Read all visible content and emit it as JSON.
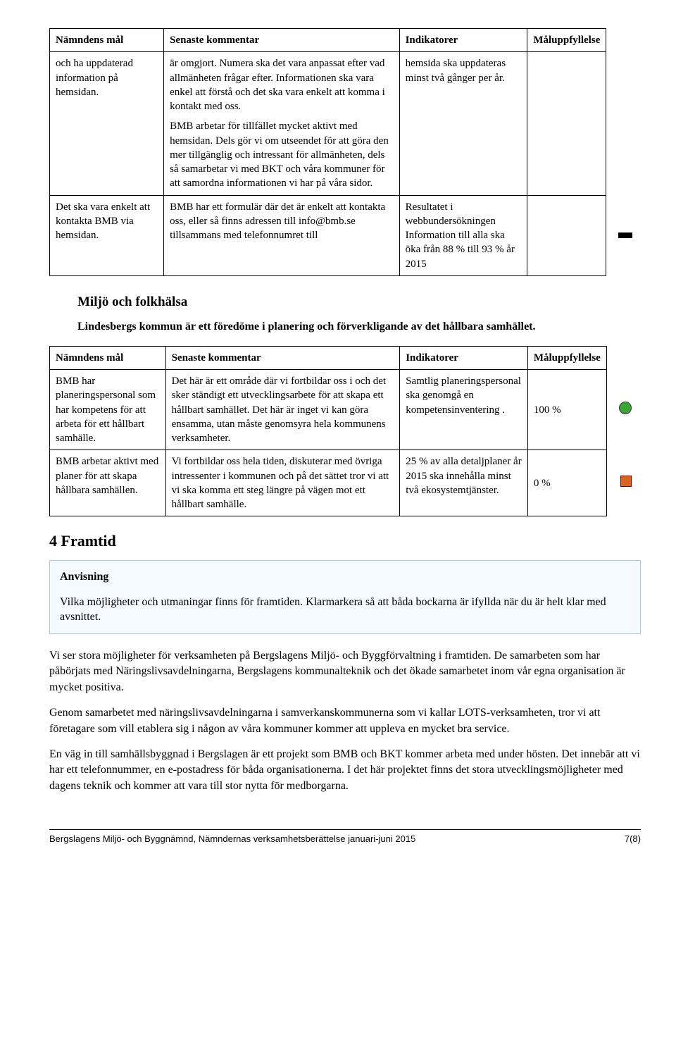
{
  "table1": {
    "headers": [
      "Nämndens mål",
      "Senaste kommentar",
      "Indikatorer",
      "Måluppfyllelse"
    ],
    "rows": [
      {
        "mal": "och ha uppdaterad information på hemsidan.",
        "kom_p1": "är omgjort. Numera ska det vara anpassat efter vad allmänheten frågar efter. Informationen ska vara enkel att förstå och det ska vara enkelt att komma i kontakt med oss.",
        "kom_p2": "BMB arbetar för tillfället mycket aktivt med hemsidan. Dels gör vi om utseendet för att göra den mer tillgänglig och intressant för allmänheten, dels så samarbetar vi med BKT och våra kommuner för att samordna informationen vi har på våra sidor.",
        "ind": "hemsida ska uppdateras minst två gånger per år.",
        "mup": "",
        "dot": ""
      },
      {
        "mal": "Det ska vara enkelt att kontakta BMB via hemsidan.",
        "kom_p1": "BMB har ett formulär där det är enkelt att kontakta oss, eller så finns adressen till info@bmb.se tillsammans med telefonnumret till",
        "kom_p2": "",
        "ind": "Resultatet i webbundersökningen Information till alla ska öka från 88 % till 93 % år 2015",
        "mup": "",
        "dot": "bar"
      }
    ]
  },
  "section_sub": "Miljö och folkhälsa",
  "intro": "Lindesbergs kommun är ett föredöme i planering och förverkligande av det hållbara samhället.",
  "table2": {
    "headers": [
      "Nämndens mål",
      "Senaste kommentar",
      "Indikatorer",
      "Måluppfyllelse"
    ],
    "rows": [
      {
        "mal": "BMB har planeringspersonal som har kompetens för att arbeta för ett hållbart samhälle.",
        "kom": "Det här är ett område där vi fortbildar oss i och det sker ständigt ett utvecklingsarbete för att skapa ett hållbart samhället. Det här är inget vi kan göra ensamma, utan måste genomsyra hela kommunens verksamheter.",
        "ind": "Samtlig planeringspersonal ska genomgå en kompetensinventering .",
        "mup": "100 %",
        "dot_color": "#3aa63a"
      },
      {
        "mal": "BMB arbetar aktivt med planer för att skapa hållbara samhällen.",
        "kom": "Vi fortbildar oss hela tiden, diskuterar med övriga intressenter i kommunen och på det sättet tror vi att vi ska komma ett steg längre på vägen mot ett hållbart samhälle.",
        "ind": "25 % av alla detaljplaner år 2015 ska innehålla minst två ekosystemtjänster.",
        "mup": "0 %",
        "dot_color": "#d9641e"
      }
    ]
  },
  "section_main": "4 Framtid",
  "anvisning": {
    "title": "Anvisning",
    "text": "Vilka möjligheter och utmaningar finns för framtiden. Klarmarkera så att båda bockarna är ifyllda när du är helt klar med avsnittet."
  },
  "body": [
    "Vi ser stora möjligheter för verksamheten på Bergslagens Miljö- och Byggförvaltning i framtiden. De samarbeten som har påbörjats med Näringslivsavdelningarna, Bergslagens kommunalteknik och det ökade samarbetet inom vår egna organisation är mycket positiva.",
    "Genom samarbetet med näringslivsavdelningarna i samverkanskommunerna som vi kallar LOTS-verksamheten, tror vi att företagare som vill etablera sig i någon av våra kommuner kommer att uppleva en mycket bra service.",
    "En väg in till samhällsbyggnad i Bergslagen är ett projekt som BMB och BKT kommer arbeta med under hösten. Det innebär att vi har ett telefonnummer, en e-postadress för båda organisationerna. I det här projektet finns det stora utvecklingsmöjligheter med dagens teknik och kommer att vara till stor nytta för medborgarna."
  ],
  "footer": {
    "left": "Bergslagens Miljö- och Byggnämnd, Nämndernas verksamhetsberättelse januari-juni 2015",
    "right": "7(8)"
  },
  "colors": {
    "box_border": "#a8c8e0",
    "box_bg": "#f4faff"
  }
}
